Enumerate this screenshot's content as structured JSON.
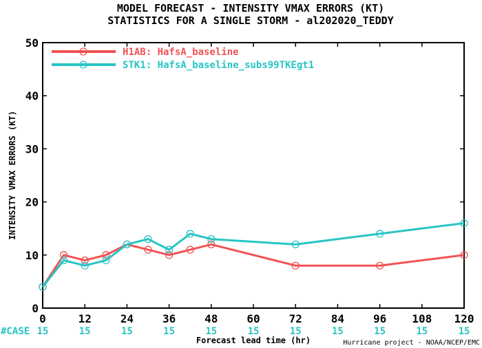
{
  "chart_data": {
    "type": "line",
    "title": "MODEL FORECAST - INTENSITY VMAX ERRORS (KT)",
    "subtitle": "STATISTICS FOR A SINGLE STORM - al202020_TEDDY",
    "xlabel": "Forecast lead time (hr)",
    "ylabel": "INTENSITY VMAX ERRORS (KT)",
    "xlim": [
      0,
      120
    ],
    "ylim": [
      0,
      50
    ],
    "x_ticks": [
      0,
      12,
      24,
      36,
      48,
      60,
      72,
      84,
      96,
      108,
      120
    ],
    "y_ticks": [
      0,
      10,
      20,
      30,
      40,
      50
    ],
    "legend_position": "top-left",
    "series": [
      {
        "name": "H1AB: HafsA_baseline",
        "color": "#f25252",
        "x": [
          0,
          6,
          12,
          18,
          24,
          30,
          36,
          42,
          48,
          72,
          96,
          120
        ],
        "values": [
          4,
          10,
          9,
          10,
          12,
          11,
          10,
          11,
          12,
          8,
          8,
          10
        ]
      },
      {
        "name": "STK1: HafsA_baseline_subs99TKEgt1",
        "color": "#27c4c4",
        "x": [
          0,
          6,
          12,
          18,
          24,
          30,
          36,
          42,
          48,
          72,
          96,
          120
        ],
        "values": [
          4,
          9,
          8,
          9,
          12,
          13,
          11,
          14,
          13,
          12,
          14,
          16
        ]
      }
    ],
    "case_label": "#CASE",
    "case_counts": [
      "15",
      "15",
      "15",
      "15",
      "15",
      "15",
      "15",
      "15",
      "15",
      "15",
      "15"
    ],
    "case_color": "#27c4c4",
    "credit": "Hurricane project - NOAA/NCEP/EMC"
  }
}
